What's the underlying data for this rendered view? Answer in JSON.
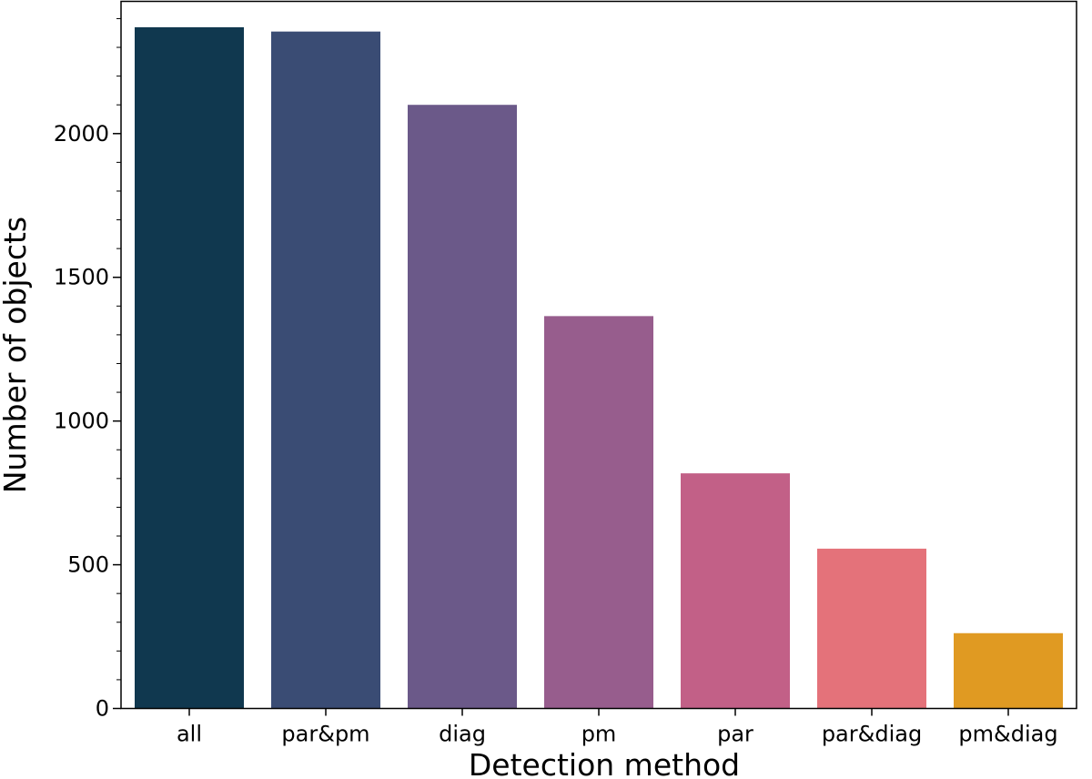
{
  "chart_data": {
    "type": "bar",
    "title": "",
    "xlabel": "Detection method",
    "ylabel": "Number of objects",
    "categories": [
      "all",
      "par&pm",
      "diag",
      "pm",
      "par",
      "par&diag",
      "pm&diag"
    ],
    "values": [
      2370,
      2355,
      2100,
      1365,
      818,
      556,
      262
    ],
    "colors": [
      "#10384f",
      "#3a4c74",
      "#6b5989",
      "#975d8d",
      "#c26087",
      "#e4727a",
      "#e09a22"
    ],
    "ylim": [
      0,
      2460
    ],
    "yticks": [
      0,
      500,
      1000,
      1500,
      2000
    ],
    "ytick_labels": [
      "0",
      "500",
      "1000",
      "1500",
      "2000"
    ],
    "minor_ytick_step": 100,
    "grid": false,
    "legend": "none"
  }
}
